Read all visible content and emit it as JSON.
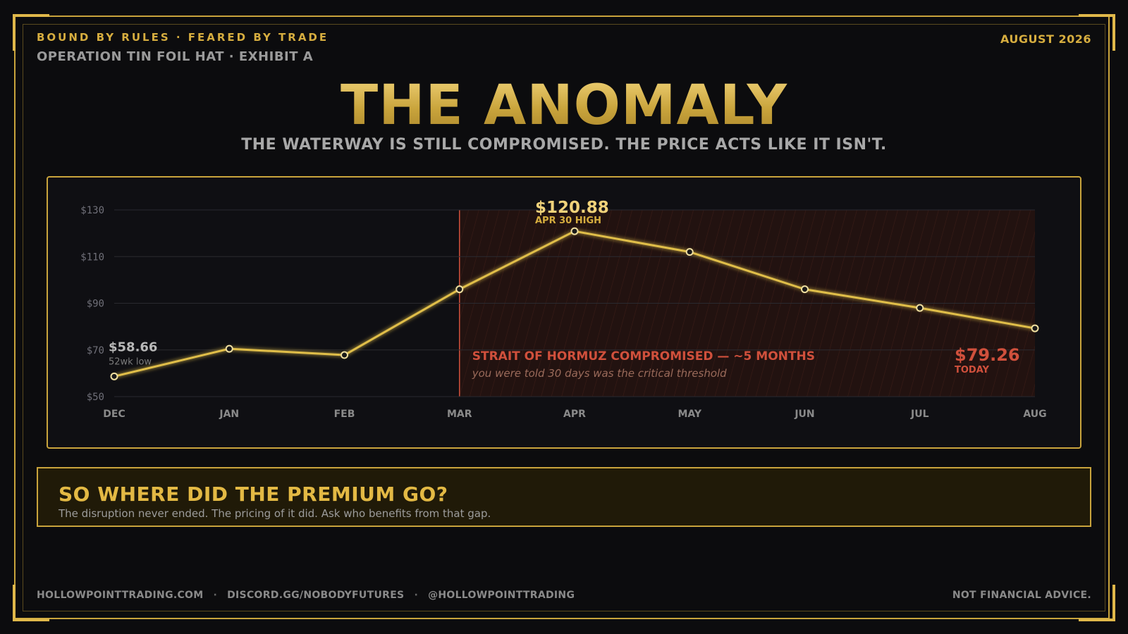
{
  "header": {
    "tagline": "BOUND BY RULES  ·  FEARED BY TRADE",
    "subline": "OPERATION TIN FOIL HAT  ·  EXHIBIT A",
    "date": "AUGUST 2026"
  },
  "title": "THE ANOMALY",
  "subtitle": "THE WATERWAY IS STILL COMPROMISED.  THE PRICE ACTS LIKE IT ISN'T.",
  "chart_data": {
    "type": "line",
    "categories": [
      "DEC",
      "JAN",
      "FEB",
      "MAR",
      "APR",
      "MAY",
      "JUN",
      "JUL",
      "AUG"
    ],
    "values": [
      58.66,
      70.5,
      67.8,
      96.0,
      120.88,
      112.0,
      96.0,
      88.0,
      79.26
    ],
    "ylim": [
      50,
      130
    ],
    "yticks": [
      50,
      70,
      90,
      110,
      130
    ],
    "ytick_labels": [
      "$50",
      "$70",
      "$90",
      "$110",
      "$130"
    ],
    "grid": true,
    "line_color": "#e0be4a",
    "shaded_region": {
      "from": "MAR",
      "to": "AUG",
      "color": "#d0503c",
      "label": "STRAIT OF HORMUZ COMPROMISED  —  ~5 MONTHS",
      "note": "you were told 30 days was the critical threshold"
    },
    "annotations": {
      "low": {
        "value": "$58.66",
        "label": "52wk low"
      },
      "high": {
        "value": "$120.88",
        "label": "APR 30 HIGH"
      },
      "today": {
        "value": "$79.26",
        "label": "TODAY"
      }
    }
  },
  "callout": {
    "heading": "SO WHERE DID THE PREMIUM GO?",
    "body": "The disruption never ended. The pricing of it did. Ask who benefits from that gap."
  },
  "footer": {
    "links": [
      "HOLLOWPOINTTRADING.COM",
      "DISCORD.GG/NOBODYFUTURES",
      "@HOLLOWPOINTTRADING"
    ],
    "separator": "·",
    "disclaimer": "NOT FINANCIAL ADVICE."
  }
}
